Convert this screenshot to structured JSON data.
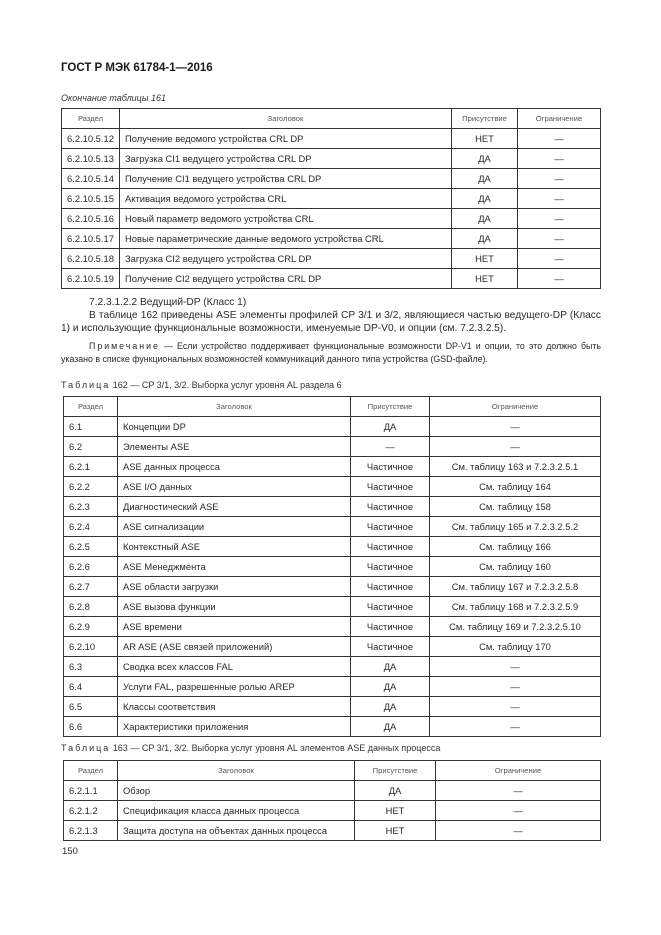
{
  "header": {
    "doc_title": "ГОСТ Р МЭК 61784-1—2016"
  },
  "table161": {
    "caption": "Окончание таблицы 161",
    "columns": [
      "Раздел",
      "Заголовок",
      "Присутствие",
      "Ограничение"
    ],
    "rows": [
      [
        "6.2.10.5.12",
        "Получение ведомого устройства CRL DP",
        "НЕТ",
        "—"
      ],
      [
        "6.2.10.5.13",
        "Загрузка CI1 ведущего устройства CRL DP",
        "ДА",
        "—"
      ],
      [
        "6.2.10.5.14",
        "Получение CI1 ведущего устройства CRL DP",
        "ДА",
        "—"
      ],
      [
        "6.2.10.5.15",
        "Активация ведомого устройства CRL",
        "ДА",
        "—"
      ],
      [
        "6.2.10.5.16",
        "Новый параметр ведомого устройства CRL",
        "ДА",
        "—"
      ],
      [
        "6.2.10.5.17",
        "Новые параметрические данные ведомого устройства CRL",
        "ДА",
        "—"
      ],
      [
        "6.2.10.5.18",
        "Загрузка CI2 ведущего устройства CRL DP",
        "НЕТ",
        "—"
      ],
      [
        "6.2.10.5.19",
        "Получение CI2 ведущего устройства CRL DP",
        "НЕТ",
        "—"
      ]
    ]
  },
  "section": {
    "heading": "7.2.3.1.2.2  Ведущий-DP (Класс 1)",
    "paragraph": "В таблице 162 приведены ASE элементы профилей CP 3/1 и 3/2, являющиеся частью ведущего-DP (Класс 1) и использующие функциональные возможности, именуемые DP-V0, и опции (см. 7.2.3.2.5).",
    "note_label": "Примечание",
    "note_text": " — Если устройство поддерживает функциональные возможности DP-V1 и опции, то это должно быть указано в списке функциональных возможностей коммуникаций данного типа устройства (GSD-файле)."
  },
  "table162": {
    "caption_label": "Таблица",
    "caption_text": " 162 — CP 3/1, 3/2. Выборка услуг уровня AL раздела 6",
    "columns": [
      "Раздел",
      "Заголовок",
      "Присутствие",
      "Ограничение"
    ],
    "rows": [
      [
        "6.1",
        "Концепции DP",
        "ДА",
        "—"
      ],
      [
        "6.2",
        "Элементы ASE",
        "—",
        "—"
      ],
      [
        "6.2.1",
        "ASE данных процесса",
        "Частичное",
        "См. таблицу 163 и 7.2.3.2.5.1"
      ],
      [
        "6.2.2",
        "ASE I/O данных",
        "Частичное",
        "См. таблицу 164"
      ],
      [
        "6.2.3",
        "Диагностический ASE",
        "Частичное",
        "См. таблицу 158"
      ],
      [
        "6.2.4",
        "ASE сигнализации",
        "Частичное",
        "См. таблицу 165 и 7.2.3.2.5.2"
      ],
      [
        "6.2.5",
        "Контекстный ASE",
        "Частичное",
        "См. таблицу 166"
      ],
      [
        "6.2.6",
        "ASE Менеджмента",
        "Частичное",
        "См. таблицу 160"
      ],
      [
        "6.2.7",
        "ASE области загрузки",
        "Частичное",
        "См. таблицу 167 и 7.2.3.2.5.8"
      ],
      [
        "6.2.8",
        "ASE вызова функции",
        "Частичное",
        "См. таблицу 168 и 7.2.3.2.5.9"
      ],
      [
        "6.2.9",
        "ASE времени",
        "Частичное",
        "См. таблицу 169 и 7.2.3.2.5.10"
      ],
      [
        "6.2.10",
        "AR ASE (ASE связей приложений)",
        "Частичное",
        "См. таблицу 170"
      ],
      [
        "6.3",
        "Сводка всех классов FAL",
        "ДА",
        "—"
      ],
      [
        "6.4",
        "Услуги FAL, разрешенные ролью AREP",
        "ДА",
        "—"
      ],
      [
        "6.5",
        "Классы соответствия",
        "ДА",
        "—"
      ],
      [
        "6.6",
        "Характеристики приложения",
        "ДА",
        "—"
      ]
    ]
  },
  "table163": {
    "caption_label": "Таблица",
    "caption_text": " 163 — CP 3/1, 3/2. Выборка услуг уровня AL элементов ASE данных процесса",
    "columns": [
      "Раздел",
      "Заголовок",
      "Присутствие",
      "Ограничение"
    ],
    "rows": [
      [
        "6.2.1.1",
        "Обзор",
        "ДА",
        "—"
      ],
      [
        "6.2.1.2",
        "Спецификация класса данных процесса",
        "НЕТ",
        "—"
      ],
      [
        "6.2.1.3",
        "Защита доступа на объектах данных процесса",
        "НЕТ",
        "—"
      ]
    ]
  },
  "footer": {
    "page_number": "150"
  }
}
